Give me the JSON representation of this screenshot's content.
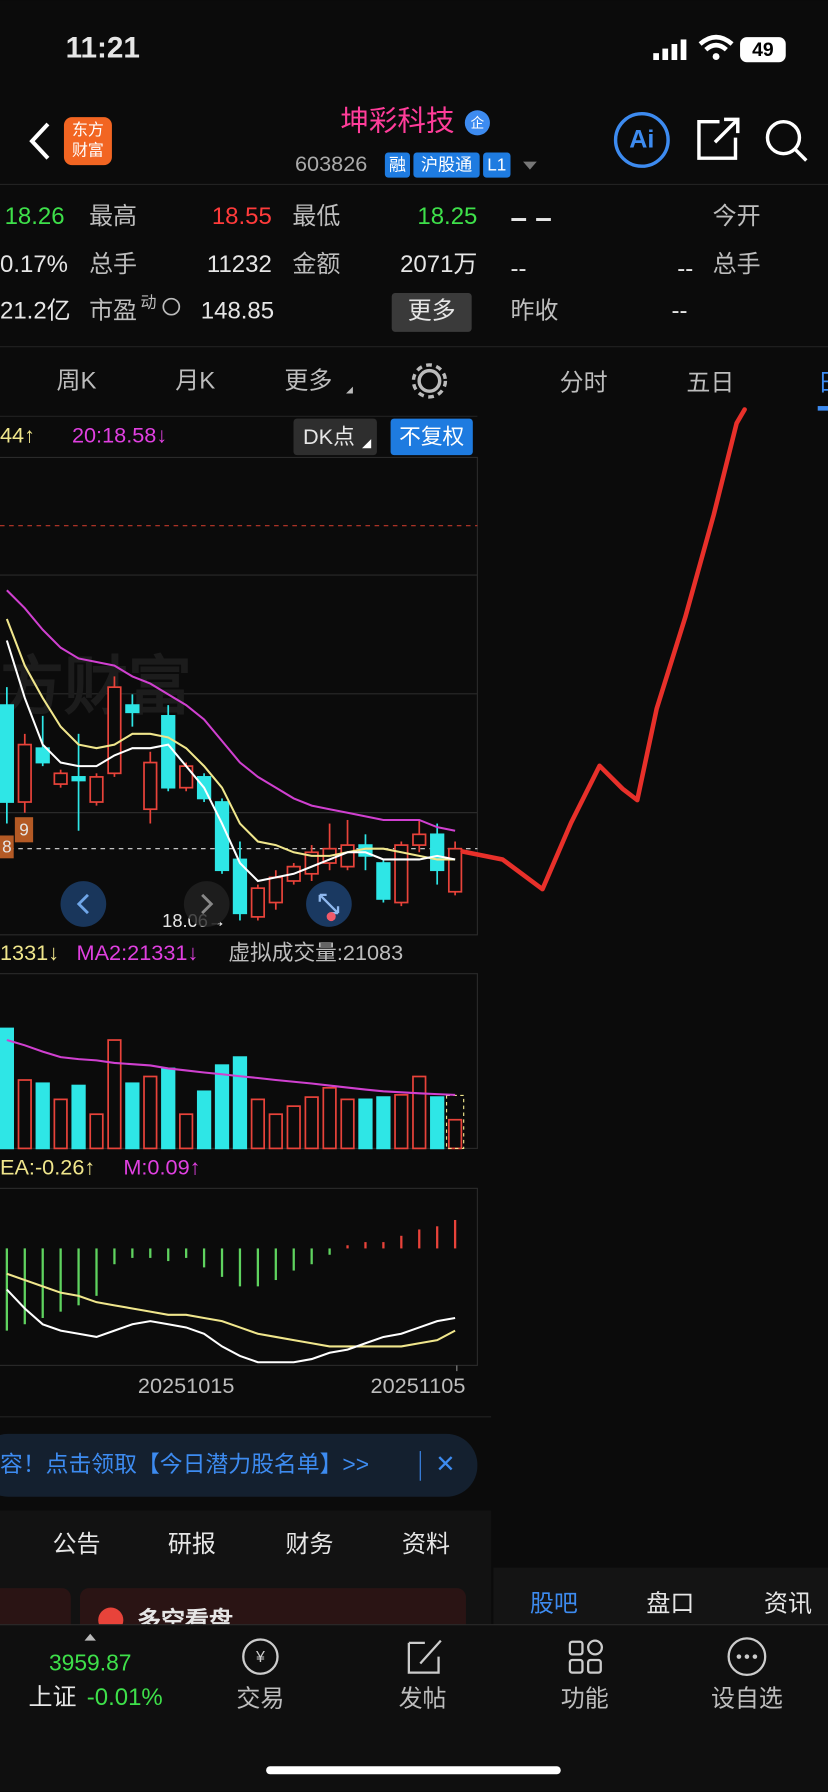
{
  "status_bar": {
    "time": "11:21",
    "battery": "49"
  },
  "header": {
    "logo": [
      "东方",
      "财富"
    ],
    "title": "坤彩科技",
    "badge": "企",
    "code": "603826",
    "tags": [
      "融",
      "沪股通",
      "L1"
    ]
  },
  "quote": {
    "left": [
      [
        "18.26",
        "最高",
        "18.55",
        "最低",
        "18.25"
      ],
      [
        "0.17%",
        "总手",
        "11232",
        "金额",
        "2071万"
      ],
      [
        "21.2亿",
        "市盈",
        "动",
        "148.85",
        "更多"
      ]
    ],
    "right": [
      [
        "– –",
        "今开"
      ],
      [
        "--",
        "--",
        "总手"
      ],
      [
        "昨收",
        "--"
      ]
    ]
  },
  "tabs": {
    "left": [
      "周K",
      "月K",
      "更多"
    ],
    "right": [
      "分时",
      "五日",
      "日"
    ]
  },
  "indicators": {
    "ma_left": "44↑",
    "ma_right": "20:18.58↓",
    "dk": "DK点",
    "adjust": "不复权"
  },
  "kline": {
    "ylim": [
      18.02,
      19.35
    ],
    "dashed_levels": [
      19.16,
      18.26
    ],
    "up_color": "#e8433a",
    "down_color": "#2ee6e6",
    "watermark": "方财富",
    "side_labels": [
      "9",
      "8"
    ],
    "low_label": "18.06→",
    "candles": [
      [
        18.66,
        18.71,
        18.33,
        18.39
      ],
      [
        18.39,
        18.58,
        18.36,
        18.55
      ],
      [
        18.54,
        18.63,
        18.49,
        18.5
      ],
      [
        18.44,
        18.48,
        18.43,
        18.47
      ],
      [
        18.46,
        18.58,
        18.31,
        18.45
      ],
      [
        18.39,
        18.47,
        18.38,
        18.46
      ],
      [
        18.47,
        18.74,
        18.46,
        18.71
      ],
      [
        18.66,
        18.69,
        18.6,
        18.64
      ],
      [
        18.37,
        18.53,
        18.33,
        18.5
      ],
      [
        18.63,
        18.66,
        18.42,
        18.43
      ],
      [
        18.43,
        18.5,
        18.42,
        18.49
      ],
      [
        18.46,
        18.47,
        18.39,
        18.4
      ],
      [
        18.39,
        18.4,
        18.19,
        18.2
      ],
      [
        18.23,
        18.28,
        18.06,
        18.08
      ],
      [
        18.07,
        18.16,
        18.06,
        18.15
      ],
      [
        18.11,
        18.2,
        18.09,
        18.18
      ],
      [
        18.17,
        18.22,
        18.16,
        18.21
      ],
      [
        18.19,
        18.27,
        18.17,
        18.25
      ],
      [
        18.22,
        18.33,
        18.2,
        18.26
      ],
      [
        18.21,
        18.34,
        18.2,
        18.27
      ],
      [
        18.27,
        18.3,
        18.2,
        18.24
      ],
      [
        18.22,
        18.23,
        18.11,
        18.12
      ],
      [
        18.11,
        18.28,
        18.1,
        18.27
      ],
      [
        18.27,
        18.34,
        18.25,
        18.3
      ],
      [
        18.3,
        18.33,
        18.16,
        18.2
      ],
      [
        18.14,
        18.28,
        18.13,
        18.26
      ]
    ],
    "ma": [
      {
        "color": "#d040d0",
        "values": [
          18.98,
          18.93,
          18.87,
          18.82,
          18.79,
          18.78,
          18.77,
          18.74,
          18.72,
          18.69,
          18.66,
          18.62,
          18.56,
          18.5,
          18.46,
          18.43,
          18.4,
          18.38,
          18.37,
          18.36,
          18.35,
          18.34,
          18.34,
          18.34,
          18.32,
          18.31
        ]
      },
      {
        "color": "#f0e68c",
        "values": [
          18.9,
          18.77,
          18.68,
          18.6,
          18.55,
          18.54,
          18.55,
          18.58,
          18.58,
          18.57,
          18.54,
          18.49,
          18.43,
          18.33,
          18.28,
          18.27,
          18.25,
          18.24,
          18.24,
          18.25,
          18.26,
          18.26,
          18.25,
          18.24,
          18.23,
          18.23
        ]
      },
      {
        "color": "#ffffff",
        "values": [
          18.84,
          18.68,
          18.55,
          18.5,
          18.49,
          18.49,
          18.52,
          18.54,
          18.54,
          18.55,
          18.49,
          18.43,
          18.33,
          18.22,
          18.17,
          18.18,
          18.19,
          18.21,
          18.23,
          18.25,
          18.25,
          18.23,
          18.23,
          18.23,
          18.24,
          18.23
        ]
      }
    ]
  },
  "volume": {
    "legend": [
      "1331↓",
      "MA2:21331↓"
    ],
    "virtual_label": "虚拟成交量:",
    "virtual_volume": 21083,
    "ylim": [
      0,
      69500
    ],
    "values": [
      47700,
      27200,
      25900,
      19500,
      25000,
      13600,
      43100,
      25900,
      28600,
      31800,
      13600,
      22700,
      33100,
      36300,
      19500,
      13600,
      16800,
      20400,
      24100,
      19500,
      19500,
      20400,
      21300,
      28600,
      20400,
      11400
    ],
    "ma": {
      "color": "#d040d0",
      "values": [
        43100,
        41000,
        38500,
        36300,
        35500,
        35000,
        34000,
        33500,
        33000,
        31800,
        31000,
        30200,
        29500,
        28700,
        28000,
        27200,
        26500,
        25800,
        25000,
        24200,
        23400,
        22700,
        22300,
        21900,
        21600,
        21300
      ]
    }
  },
  "macd": {
    "legend": [
      "EA:-0.26↑",
      "M:0.09↑"
    ],
    "ylim": [
      -0.37,
      0.19
    ],
    "bars": [
      -0.26,
      -0.24,
      -0.22,
      -0.2,
      -0.18,
      -0.15,
      -0.05,
      -0.03,
      -0.03,
      -0.04,
      -0.03,
      -0.06,
      -0.09,
      -0.12,
      -0.12,
      -0.1,
      -0.07,
      -0.05,
      -0.02,
      0.01,
      0.02,
      0.02,
      0.04,
      0.06,
      0.07,
      0.09
    ],
    "lines": [
      {
        "color": "#f0e68c",
        "values": [
          -0.08,
          -0.1,
          -0.12,
          -0.14,
          -0.15,
          -0.17,
          -0.18,
          -0.19,
          -0.2,
          -0.21,
          -0.21,
          -0.22,
          -0.23,
          -0.25,
          -0.27,
          -0.28,
          -0.29,
          -0.3,
          -0.31,
          -0.31,
          -0.31,
          -0.31,
          -0.31,
          -0.3,
          -0.29,
          -0.26
        ]
      },
      {
        "color": "#ffffff",
        "values": [
          -0.13,
          -0.19,
          -0.24,
          -0.26,
          -0.27,
          -0.28,
          -0.26,
          -0.24,
          -0.23,
          -0.24,
          -0.25,
          -0.27,
          -0.31,
          -0.34,
          -0.36,
          -0.36,
          -0.36,
          -0.35,
          -0.33,
          -0.32,
          -0.3,
          -0.28,
          -0.27,
          -0.25,
          -0.23,
          -0.22
        ]
      }
    ],
    "dates": [
      "20251015",
      "20251105"
    ]
  },
  "banner": {
    "text": "容！点击领取【今日潜力股名单】>>",
    "close": "✕"
  },
  "section_tabs": {
    "left": [
      "公告",
      "研报",
      "财务",
      "资料"
    ],
    "right": [
      "股吧",
      "盘口",
      "资讯"
    ],
    "card": "多空看盘"
  },
  "bottom_nav": {
    "index_value": "3959.87",
    "index_name": "上证",
    "index_change": "-0.01%",
    "items": [
      "交易",
      "发帖",
      "功能",
      "设自选"
    ]
  }
}
